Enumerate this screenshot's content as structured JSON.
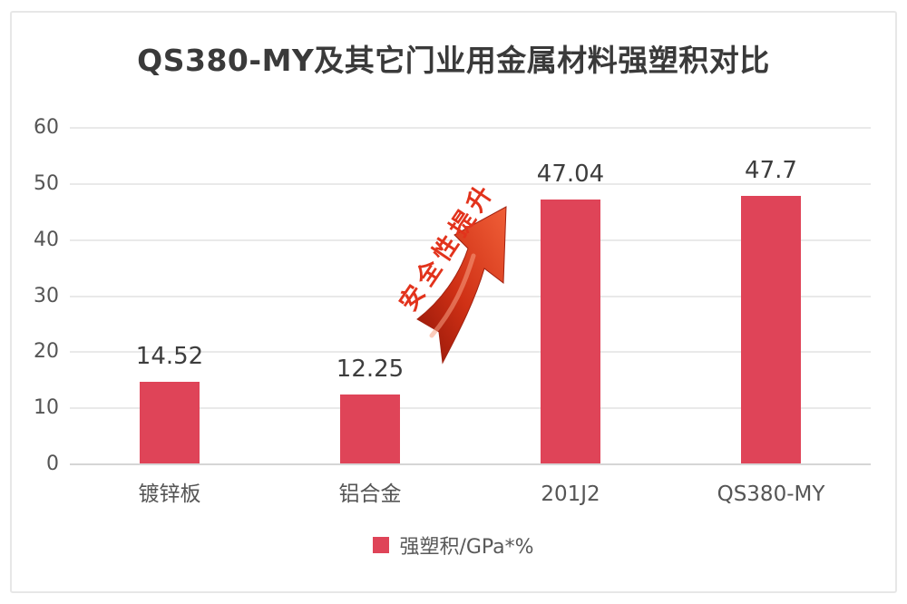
{
  "chart_data": {
    "type": "bar",
    "title": "QS380-MY及其它门业用金属材料强塑积对比",
    "categories": [
      "镀锌板",
      "铝合金",
      "201J2",
      "QS380-MY"
    ],
    "values": [
      14.52,
      12.25,
      47.04,
      47.7
    ],
    "value_labels": [
      "14.52",
      "12.25",
      "47.04",
      "47.7"
    ],
    "yticks": [
      0,
      10,
      20,
      30,
      40,
      50,
      60
    ],
    "ylim": [
      0,
      60
    ],
    "xlabel": "",
    "ylabel": "",
    "grid": "horizontal",
    "legend_position": "bottom",
    "legend": [
      "强塑积/GPa*%"
    ],
    "bar_color": "#df4458",
    "annotation": {
      "text": "安全性提升",
      "color": "#e2331c"
    }
  }
}
